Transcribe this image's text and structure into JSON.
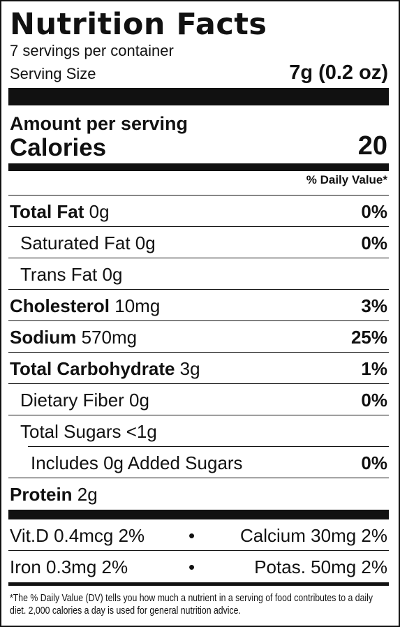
{
  "header": {
    "title": "Nutrition Facts",
    "servings_per_container": "7 servings per container",
    "serving_size_label": "Serving Size",
    "serving_size_value": "7g (0.2 oz)"
  },
  "calories": {
    "amount_per_serving": "Amount per serving",
    "label": "Calories",
    "value": "20"
  },
  "daily_value_header": "% Daily Value*",
  "nutrients": [
    {
      "name": "Total Fat",
      "amount": " 0g",
      "dv": "0%"
    },
    {
      "name": "Saturated Fat 0g",
      "dv": "0%"
    },
    {
      "name": "Trans Fat 0g",
      "dv": ""
    },
    {
      "name": "Cholesterol",
      "amount": " 10mg",
      "dv": "3%"
    },
    {
      "name": "Sodium",
      "amount": " 570mg",
      "dv": "25%"
    },
    {
      "name": "Total Carbohydrate",
      "amount": " 3g",
      "dv": "1%"
    },
    {
      "name": "Dietary Fiber 0g",
      "dv": "0%"
    },
    {
      "name": "Total Sugars <1g",
      "dv": ""
    },
    {
      "name": "Includes 0g Added Sugars",
      "dv": "0%"
    },
    {
      "name": "Protein",
      "amount": " 2g",
      "dv": ""
    }
  ],
  "vitamins": [
    {
      "left": "Vit.D 0.4mcg  2%",
      "sep": "•",
      "right": "Calcium 30mg  2%"
    },
    {
      "left": "Iron 0.3mg 2%",
      "sep": "•",
      "right": "Potas. 50mg 2%"
    }
  ],
  "footnote": "*The % Daily Value (DV) tells you how much a nutrient in a serving of food contributes to a daily diet. 2,000 calories a day is used for general nutrition advice."
}
